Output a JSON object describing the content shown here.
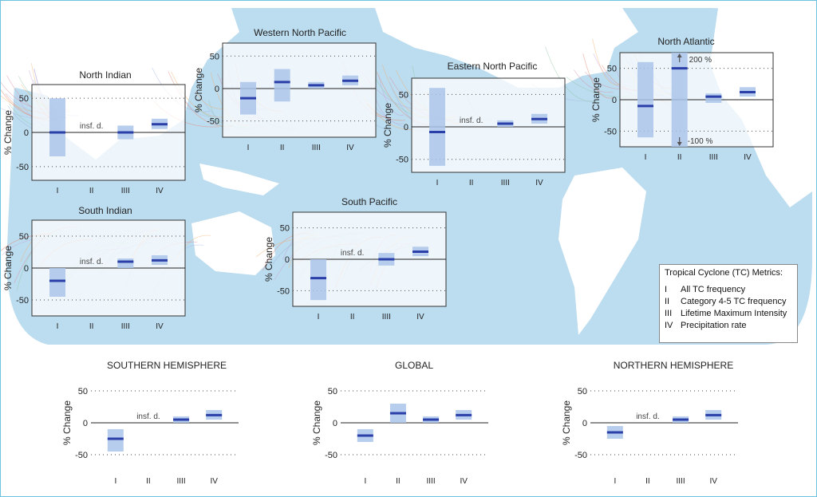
{
  "colors": {
    "ocean": "#bcdcef",
    "land": "#ffffff",
    "box": "#aac4ea",
    "median": "#2b3fa8",
    "frame": "#6cc3de"
  },
  "chart_data": [
    {
      "type": "bar",
      "title": "North Indian",
      "ylabel": "% Change",
      "ylim": [
        -70,
        70
      ],
      "yticks": [
        50,
        0,
        -50
      ],
      "categories": [
        "I",
        "II",
        "IIII",
        "IV"
      ],
      "ranges": [
        [
          -35,
          50
        ],
        null,
        [
          -10,
          10
        ],
        [
          5,
          20
        ]
      ],
      "medians": [
        0,
        null,
        0,
        12
      ],
      "insufficient": [
        false,
        true,
        false,
        false
      ],
      "insf_label": "insf. d."
    },
    {
      "type": "bar",
      "title": "Western North Pacific",
      "ylabel": "% Change",
      "ylim": [
        -75,
        70
      ],
      "yticks": [
        50,
        0,
        -50
      ],
      "categories": [
        "I",
        "II",
        "IIII",
        "IV"
      ],
      "ranges": [
        [
          -40,
          10
        ],
        [
          -20,
          30
        ],
        [
          0,
          10
        ],
        [
          5,
          20
        ]
      ],
      "medians": [
        -15,
        10,
        5,
        12
      ],
      "insufficient": [
        false,
        false,
        false,
        false
      ]
    },
    {
      "type": "bar",
      "title": "Eastern North Pacific",
      "ylabel": "% Change",
      "ylim": [
        -70,
        75
      ],
      "yticks": [
        50,
        0,
        -50
      ],
      "categories": [
        "I",
        "II",
        "IIII",
        "IV"
      ],
      "ranges": [
        [
          -60,
          60
        ],
        null,
        [
          0,
          10
        ],
        [
          5,
          20
        ]
      ],
      "medians": [
        -8,
        null,
        5,
        12
      ],
      "insufficient": [
        false,
        true,
        false,
        false
      ],
      "insf_label": "insf. d."
    },
    {
      "type": "bar",
      "title": "North Atlantic",
      "ylabel": "% Change",
      "ylim": [
        -75,
        75
      ],
      "yticks": [
        50,
        0,
        -50
      ],
      "categories": [
        "I",
        "II",
        "IIII",
        "IV"
      ],
      "ranges": [
        [
          -60,
          60
        ],
        [
          -75,
          75
        ],
        [
          -5,
          10
        ],
        [
          5,
          20
        ]
      ],
      "medians": [
        -10,
        50,
        5,
        12
      ],
      "insufficient": [
        false,
        false,
        false,
        false
      ],
      "annotations": [
        "200 %",
        "-100 %"
      ]
    },
    {
      "type": "bar",
      "title": "South Indian",
      "ylabel": "% Change",
      "ylim": [
        -75,
        75
      ],
      "yticks": [
        50,
        0,
        -50
      ],
      "categories": [
        "I",
        "II",
        "IIII",
        "IV"
      ],
      "ranges": [
        [
          -45,
          0
        ],
        null,
        [
          0,
          15
        ],
        [
          5,
          20
        ]
      ],
      "medians": [
        -20,
        null,
        10,
        12
      ],
      "insufficient": [
        false,
        true,
        false,
        false
      ],
      "insf_label": "insf. d."
    },
    {
      "type": "bar",
      "title": "South Pacific",
      "ylabel": "% Change",
      "ylim": [
        -75,
        75
      ],
      "yticks": [
        50,
        0,
        -50
      ],
      "categories": [
        "I",
        "II",
        "IIII",
        "IV"
      ],
      "ranges": [
        [
          -65,
          0
        ],
        null,
        [
          -10,
          10
        ],
        [
          5,
          20
        ]
      ],
      "medians": [
        -30,
        null,
        0,
        12
      ],
      "insufficient": [
        false,
        true,
        false,
        false
      ],
      "insf_label": "insf. d."
    },
    {
      "type": "bar",
      "title": "SOUTHERN HEMISPHERE",
      "ylabel": "% Change",
      "ylim": [
        -75,
        75
      ],
      "yticks": [
        50,
        0,
        -50
      ],
      "categories": [
        "I",
        "II",
        "IIII",
        "IV"
      ],
      "ranges": [
        [
          -45,
          -10
        ],
        null,
        [
          0,
          10
        ],
        [
          5,
          20
        ]
      ],
      "medians": [
        -25,
        null,
        5,
        12
      ],
      "insufficient": [
        false,
        true,
        false,
        false
      ],
      "insf_label": "insf. d."
    },
    {
      "type": "bar",
      "title": "GLOBAL",
      "ylabel": "% Change",
      "ylim": [
        -75,
        75
      ],
      "yticks": [
        50,
        0,
        -50
      ],
      "categories": [
        "I",
        "II",
        "IIII",
        "IV"
      ],
      "ranges": [
        [
          -30,
          -10
        ],
        [
          0,
          30
        ],
        [
          0,
          10
        ],
        [
          5,
          20
        ]
      ],
      "medians": [
        -20,
        15,
        5,
        12
      ],
      "insufficient": [
        false,
        false,
        false,
        false
      ]
    },
    {
      "type": "bar",
      "title": "NORTHERN HEMISPHERE",
      "ylabel": "% Change",
      "ylim": [
        -75,
        75
      ],
      "yticks": [
        50,
        0,
        -50
      ],
      "categories": [
        "I",
        "II",
        "IIII",
        "IV"
      ],
      "ranges": [
        [
          -25,
          -5
        ],
        null,
        [
          0,
          10
        ],
        [
          5,
          20
        ]
      ],
      "medians": [
        -15,
        null,
        5,
        12
      ],
      "insufficient": [
        false,
        true,
        false,
        false
      ],
      "insf_label": "insf. d."
    }
  ],
  "legend": {
    "title": "Tropical Cyclone (TC) Metrics:",
    "items": [
      {
        "roman": "I",
        "text": "All TC frequency"
      },
      {
        "roman": "II",
        "text": "Category 4-5 TC frequency"
      },
      {
        "roman": "III",
        "text": "Lifetime Maximum Intensity"
      },
      {
        "roman": "IV",
        "text": "Precipitation rate"
      }
    ]
  }
}
